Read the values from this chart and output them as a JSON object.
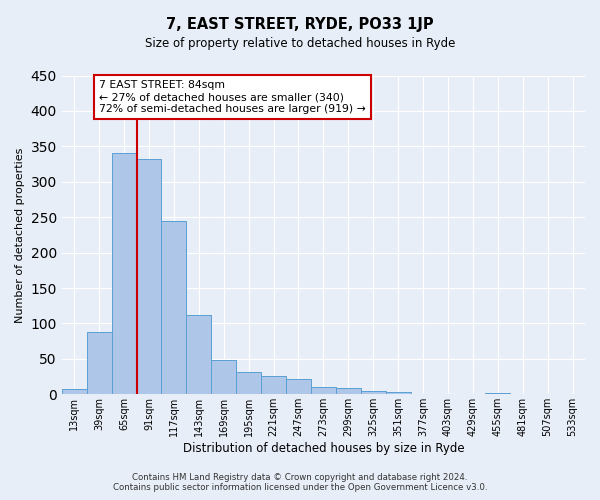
{
  "title": "7, EAST STREET, RYDE, PO33 1JP",
  "subtitle": "Size of property relative to detached houses in Ryde",
  "xlabel": "Distribution of detached houses by size in Ryde",
  "ylabel": "Number of detached properties",
  "bar_labels": [
    "13sqm",
    "39sqm",
    "65sqm",
    "91sqm",
    "117sqm",
    "143sqm",
    "169sqm",
    "195sqm",
    "221sqm",
    "247sqm",
    "273sqm",
    "299sqm",
    "325sqm",
    "351sqm",
    "377sqm",
    "403sqm",
    "429sqm",
    "455sqm",
    "481sqm",
    "507sqm",
    "533sqm"
  ],
  "bar_values": [
    7,
    88,
    340,
    332,
    245,
    112,
    49,
    32,
    26,
    22,
    10,
    9,
    5,
    3,
    1,
    1,
    0,
    2,
    0,
    0,
    1
  ],
  "bar_color": "#aec6e8",
  "bar_edge_color": "#5a9fd4",
  "vline_x_idx": 2,
  "vline_color": "#cc0000",
  "annotation_text": "7 EAST STREET: 84sqm\n← 27% of detached houses are smaller (340)\n72% of semi-detached houses are larger (919) →",
  "annotation_box_color": "#ffffff",
  "annotation_box_edge_color": "#cc0000",
  "ylim": [
    0,
    450
  ],
  "yticks": [
    0,
    50,
    100,
    150,
    200,
    250,
    300,
    350,
    400,
    450
  ],
  "bg_color": "#e8eef7",
  "plot_bg_color": "#e8eef7",
  "grid_color": "#ffffff",
  "footer_line1": "Contains HM Land Registry data © Crown copyright and database right 2024.",
  "footer_line2": "Contains public sector information licensed under the Open Government Licence v3.0."
}
